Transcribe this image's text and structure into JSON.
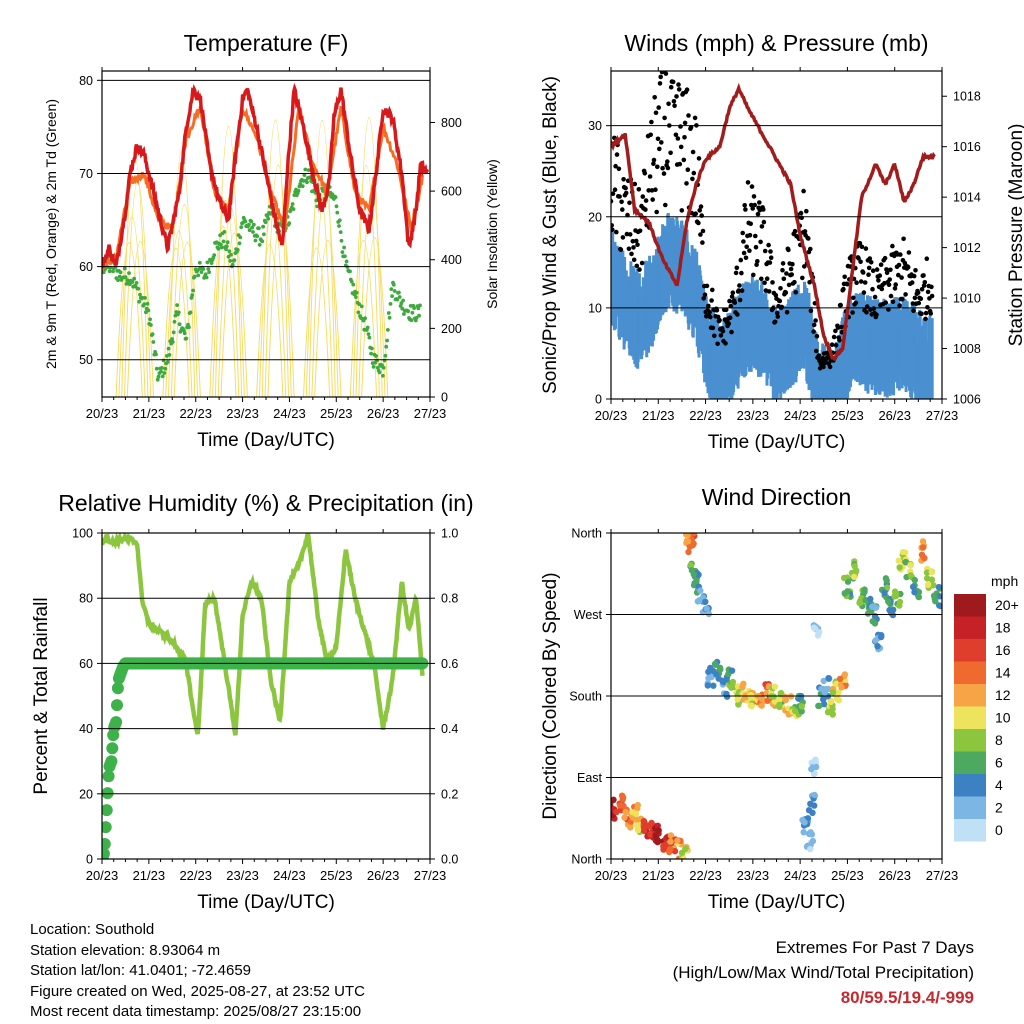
{
  "colors": {
    "temp2m": "#d7191c",
    "temp9m": "#f46d24",
    "dewpoint": "#3eaa3e",
    "solar": "#f6dc63",
    "wind": "#4a90d0",
    "gust": "#000000",
    "pressure": "#a11c1c",
    "rh": "#8cc63f",
    "precip": "#3db24a"
  },
  "chart_data": [
    {
      "id": "temperature",
      "type": "line",
      "title": "Temperature (F)",
      "xlabel": "Time (Day/UTC)",
      "ylabel": "2m & 9m T (Red, Orange) & 2m Td (Green)",
      "y2label": "Solar Insolation (Yellow)",
      "x_ticks": [
        "20/23",
        "21/23",
        "22/23",
        "23/23",
        "24/23",
        "25/23",
        "26/23",
        "27/23"
      ],
      "y_ticks": [
        "50",
        "60",
        "70",
        "80"
      ],
      "y2_ticks": [
        "0",
        "200",
        "400",
        "600",
        "800"
      ],
      "xlim": [
        0,
        7
      ],
      "ylim": [
        46,
        81
      ],
      "y2lim": [
        0,
        950
      ],
      "grid": "horizontal",
      "series": [
        {
          "name": "2m T",
          "role": "temp2m",
          "x": [
            0,
            0.15,
            0.3,
            0.4,
            0.5,
            0.6,
            0.75,
            0.9,
            1.0,
            1.2,
            1.4,
            1.65,
            1.8,
            1.95,
            2.1,
            2.3,
            2.5,
            2.7,
            2.85,
            3.0,
            3.1,
            3.3,
            3.5,
            3.7,
            3.85,
            3.95,
            4.1,
            4.3,
            4.5,
            4.7,
            4.85,
            4.95,
            5.1,
            5.3,
            5.5,
            5.7,
            5.85,
            6.0,
            6.2,
            6.4,
            6.55,
            6.7,
            6.8,
            6.95
          ],
          "y": [
            60,
            62,
            60,
            63,
            66,
            70,
            73,
            72,
            70,
            66,
            62,
            68,
            75,
            79,
            78,
            71,
            67,
            65,
            72,
            78,
            79,
            75,
            70,
            65,
            62,
            70,
            79,
            75,
            70,
            66,
            69,
            76,
            79,
            72,
            66,
            64,
            70,
            77,
            76,
            70,
            62,
            66,
            71,
            70
          ]
        },
        {
          "name": "9m T",
          "role": "temp9m",
          "x": [
            0,
            0.3,
            0.6,
            0.9,
            1.2,
            1.5,
            1.8,
            2.1,
            2.4,
            2.7,
            3.0,
            3.3,
            3.6,
            3.9,
            4.2,
            4.5,
            4.8,
            5.1,
            5.4,
            5.7,
            6.0,
            6.3,
            6.6,
            6.85
          ],
          "y": [
            60,
            61,
            69,
            70,
            65,
            64,
            74,
            77,
            68,
            66,
            77,
            74,
            68,
            64,
            77,
            71,
            68,
            77,
            68,
            66,
            75,
            71,
            64,
            70
          ]
        },
        {
          "name": "2m Td",
          "role": "dewpoint",
          "x": [
            0,
            0.2,
            0.4,
            0.6,
            0.8,
            1.0,
            1.2,
            1.4,
            1.6,
            1.8,
            2.0,
            2.2,
            2.4,
            2.6,
            2.8,
            3.0,
            3.2,
            3.4,
            3.6,
            3.8,
            4.0,
            4.2,
            4.4,
            4.6,
            4.8,
            5.0,
            5.2,
            5.4,
            5.6,
            5.8,
            6.0,
            6.2,
            6.4,
            6.6,
            6.8
          ],
          "y": [
            60,
            60,
            59,
            59,
            57,
            55,
            48,
            50,
            55,
            52,
            60,
            59,
            62,
            63,
            60,
            65,
            64,
            63,
            66,
            64,
            65,
            69,
            70,
            67,
            68,
            67,
            60,
            57,
            54,
            50,
            49,
            58,
            56,
            55,
            55
          ]
        },
        {
          "name": "Solar Insolation",
          "role": "solar",
          "axis": "y2",
          "day_centers": [
            0.7,
            1.7,
            2.7,
            3.7,
            4.7,
            5.7
          ],
          "peaks": [
            730,
            700,
            790,
            810,
            820,
            800
          ]
        }
      ]
    },
    {
      "id": "winds",
      "type": "scatter",
      "title": "Winds (mph) & Pressure (mb)",
      "xlabel": "Time (Day/UTC)",
      "ylabel": "Sonic/Prop Wind & Gust (Blue, Black)",
      "y2label": "Station Pressure (Maroon)",
      "x_ticks": [
        "20/23",
        "21/23",
        "22/23",
        "23/23",
        "24/23",
        "25/23",
        "26/23",
        "27/23"
      ],
      "y_ticks": [
        "0",
        "10",
        "20",
        "30"
      ],
      "y2_ticks": [
        "1006",
        "1008",
        "1010",
        "1012",
        "1014",
        "1016",
        "1018"
      ],
      "xlim": [
        0,
        7
      ],
      "ylim": [
        0,
        36
      ],
      "y2lim": [
        1006,
        1019
      ],
      "grid": "horizontal",
      "series": [
        {
          "name": "Wind",
          "role": "wind",
          "x": [
            0,
            0.3,
            0.6,
            0.9,
            1.2,
            1.5,
            1.8,
            2.0,
            2.3,
            2.6,
            2.9,
            3.2,
            3.5,
            3.8,
            4.1,
            4.4,
            4.7,
            5.0,
            5.3,
            5.6,
            5.9,
            6.2,
            6.5,
            6.8
          ],
          "y": [
            15,
            12,
            10,
            13,
            17,
            16,
            13,
            8,
            4,
            7,
            10,
            9,
            6,
            8,
            10,
            2,
            3,
            7,
            8,
            7,
            7,
            8,
            6,
            5
          ]
        },
        {
          "name": "Gust",
          "role": "gust",
          "x": [
            0,
            0.3,
            0.6,
            0.9,
            1.2,
            1.5,
            1.8,
            2.0,
            2.3,
            2.6,
            2.9,
            3.2,
            3.5,
            3.8,
            4.1,
            4.4,
            4.7,
            5.0,
            5.3,
            5.6,
            5.9,
            6.2,
            6.5,
            6.8
          ],
          "y": [
            24,
            20,
            18,
            26,
            30,
            28,
            25,
            12,
            7,
            10,
            19,
            17,
            10,
            14,
            19,
            4,
            5,
            12,
            14,
            11,
            13,
            14,
            11,
            13
          ]
        },
        {
          "name": "Station Pressure",
          "role": "pressure",
          "axis": "y2",
          "x": [
            0,
            0.3,
            0.5,
            0.8,
            1.1,
            1.4,
            1.6,
            1.8,
            2.0,
            2.3,
            2.5,
            2.7,
            2.9,
            3.2,
            3.5,
            3.8,
            4.0,
            4.3,
            4.5,
            4.7,
            4.9,
            5.1,
            5.3,
            5.6,
            5.8,
            6.0,
            6.2,
            6.4,
            6.6,
            6.85
          ],
          "y": [
            1016,
            1016.5,
            1013.5,
            1013,
            1011.5,
            1010.5,
            1013,
            1014.5,
            1015.5,
            1016,
            1017.5,
            1018.3,
            1017.5,
            1016.5,
            1015.5,
            1014.5,
            1012.5,
            1010.5,
            1008.5,
            1007.6,
            1008,
            1011,
            1014,
            1015.3,
            1014.5,
            1015.3,
            1013.8,
            1014.5,
            1015.6,
            1015.6
          ]
        }
      ]
    },
    {
      "id": "humidity",
      "type": "line",
      "title": "Relative Humidity (%) & Precipitation (in)",
      "xlabel": "Time (Day/UTC)",
      "ylabel": "Percent & Total Rainfall",
      "x_ticks": [
        "20/23",
        "21/23",
        "22/23",
        "23/23",
        "24/23",
        "25/23",
        "26/23",
        "27/23"
      ],
      "y_ticks": [
        "0",
        "20",
        "40",
        "60",
        "80",
        "100"
      ],
      "y2_ticks": [
        "0.0",
        "0.2",
        "0.4",
        "0.6",
        "0.8",
        "1.0"
      ],
      "xlim": [
        0,
        7
      ],
      "ylim": [
        0,
        100
      ],
      "y2lim": [
        0,
        1.0
      ],
      "grid": "horizontal",
      "series": [
        {
          "name": "Relative Humidity",
          "role": "rh",
          "x": [
            0,
            0.1,
            0.2,
            0.4,
            0.6,
            0.75,
            0.85,
            1.0,
            1.2,
            1.4,
            1.6,
            1.8,
            1.95,
            2.05,
            2.2,
            2.4,
            2.6,
            2.85,
            3.0,
            3.2,
            3.4,
            3.6,
            3.8,
            4.0,
            4.2,
            4.4,
            4.6,
            4.8,
            5.0,
            5.2,
            5.4,
            5.6,
            5.8,
            6.0,
            6.2,
            6.4,
            6.55,
            6.7,
            6.85
          ],
          "y": [
            97,
            99,
            97,
            98,
            98,
            97,
            80,
            72,
            70,
            68,
            65,
            60,
            45,
            38,
            78,
            80,
            62,
            38,
            75,
            85,
            80,
            55,
            42,
            85,
            90,
            100,
            75,
            60,
            65,
            95,
            80,
            70,
            60,
            40,
            55,
            85,
            70,
            80,
            55
          ]
        },
        {
          "name": "Total Rainfall",
          "role": "precip",
          "axis": "y2",
          "x": [
            0,
            0.05,
            0.1,
            0.15,
            0.2,
            0.25,
            0.3,
            0.35,
            0.4,
            0.45,
            0.5,
            0.6,
            6.85
          ],
          "y": [
            0,
            0.02,
            0.15,
            0.28,
            0.3,
            0.4,
            0.42,
            0.55,
            0.57,
            0.59,
            0.6,
            0.6,
            0.6
          ]
        }
      ]
    },
    {
      "id": "direction",
      "type": "scatter",
      "title": "Wind Direction",
      "xlabel": "Time (Day/UTC)",
      "ylabel": "Direction (Colored By Speed)",
      "x_ticks": [
        "20/23",
        "21/23",
        "22/23",
        "23/23",
        "24/23",
        "25/23",
        "26/23",
        "27/23"
      ],
      "y_ticks": [
        "North",
        "East",
        "South",
        "West",
        "North"
      ],
      "xlim": [
        0,
        7
      ],
      "ylim": [
        0,
        360
      ],
      "grid": "horizontal",
      "colorbar": {
        "title": "mph",
        "labels": [
          "20+",
          "18",
          "16",
          "14",
          "12",
          "10",
          "8",
          "6",
          "4",
          "2",
          "0"
        ],
        "colors": [
          "#9e1a1d",
          "#c62127",
          "#e03e2d",
          "#ee6a2e",
          "#f7a446",
          "#ede35d",
          "#8cc63f",
          "#4da860",
          "#3c82c2",
          "#7cb6e4",
          "#bfe0f5"
        ]
      },
      "series": [
        {
          "name": "Direction",
          "x": [
            0.05,
            0.2,
            0.35,
            0.5,
            0.6,
            0.75,
            0.9,
            1.0,
            1.15,
            1.3,
            1.45,
            1.55,
            1.65,
            1.7,
            1.75,
            1.8,
            1.9,
            2.0,
            2.1,
            2.25,
            2.4,
            2.55,
            2.7,
            2.85,
            3.0,
            3.15,
            3.3,
            3.45,
            3.6,
            3.75,
            3.9,
            4.0,
            4.1,
            4.2,
            4.25,
            4.3,
            4.35,
            4.45,
            4.55,
            4.65,
            4.75,
            4.9,
            5.0,
            5.15,
            5.3,
            5.45,
            5.55,
            5.65,
            5.8,
            5.9,
            6.05,
            6.15,
            6.3,
            6.45,
            6.6,
            6.75,
            6.9
          ],
          "y": [
            55,
            60,
            45,
            50,
            40,
            35,
            30,
            28,
            20,
            15,
            10,
            5,
            355,
            350,
            320,
            305,
            290,
            280,
            200,
            210,
            190,
            200,
            180,
            185,
            180,
            175,
            185,
            180,
            175,
            170,
            165,
            170,
            40,
            20,
            60,
            100,
            250,
            180,
            190,
            170,
            185,
            200,
            300,
            320,
            290,
            280,
            270,
            240,
            300,
            280,
            290,
            330,
            320,
            300,
            340,
            310,
            290
          ],
          "speed": [
            18,
            16,
            14,
            12,
            10,
            16,
            18,
            20,
            18,
            14,
            12,
            10,
            12,
            14,
            6,
            5,
            4,
            3,
            4,
            5,
            3,
            6,
            9,
            11,
            10,
            12,
            14,
            10,
            8,
            12,
            8,
            6,
            3,
            2,
            3,
            1,
            2,
            4,
            4,
            8,
            10,
            12,
            6,
            8,
            7,
            5,
            4,
            3,
            6,
            5,
            7,
            10,
            8,
            6,
            12,
            9,
            5
          ]
        }
      ]
    }
  ],
  "info": {
    "location": "Location: Southold",
    "elevation": "Station elevation: 8.93064 m",
    "latlon": "Station lat/lon: 41.0401; -72.4659",
    "created": "Figure created on Wed, 2025-08-27, at 23:52 UTC",
    "recent": "Most recent data timestamp: 2025/08/27 23:15:00"
  },
  "extremes": {
    "line1": "Extremes For Past 7 Days",
    "line2": "(High/Low/Max Wind/Total Precipitation)",
    "value": "80/59.5/19.4/-999"
  }
}
